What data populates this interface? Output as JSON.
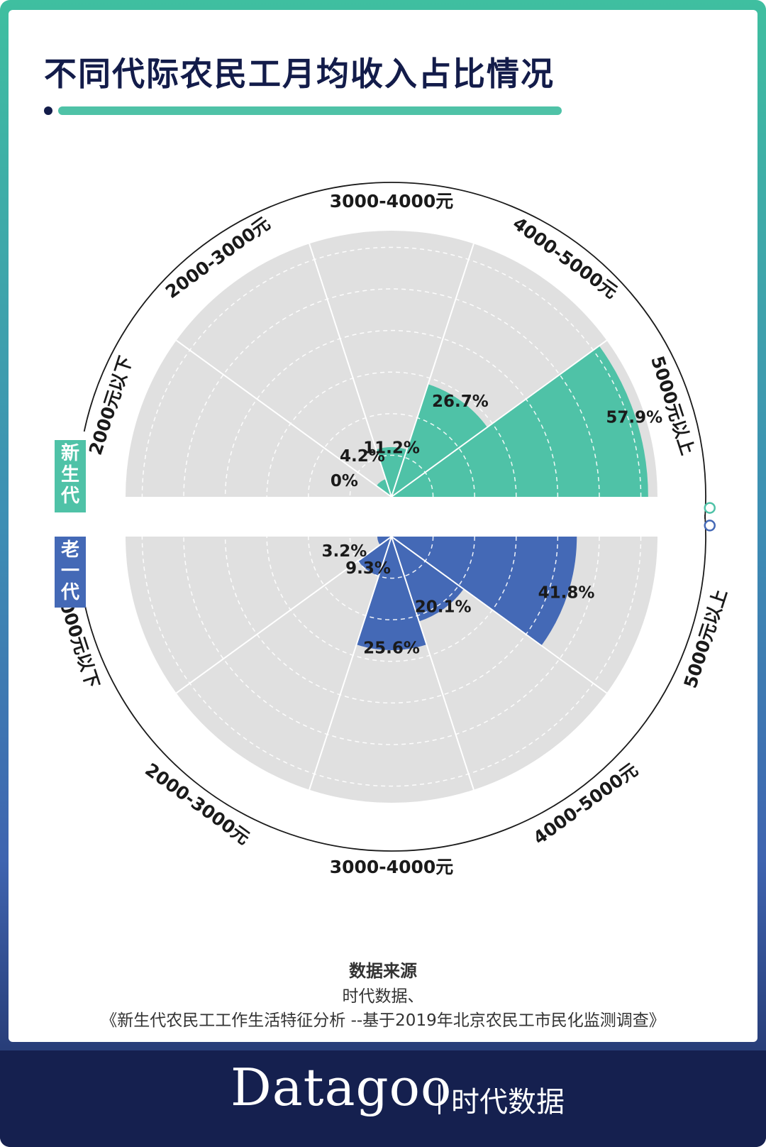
{
  "title": "不同代际农民工月均收入占比情况",
  "series_tags": {
    "new": "新生代",
    "old": "老一代"
  },
  "source": {
    "heading": "数据来源",
    "line1": "时代数据、",
    "line2": "《新生代农民工工作生活特征分析 --基于2019年北京农民工市民化监测调查》"
  },
  "footer": {
    "brand": "Datagoo",
    "brand_cn": "时代数据"
  },
  "colors": {
    "new": "#4fc2a7",
    "old": "#4469b6",
    "background_sector": "#e0e0e0",
    "ring": "#1a1a1a",
    "text": "#1a1a1a"
  },
  "chart_data": [
    {
      "type": "polar-bar",
      "series": "新生代",
      "categories": [
        "2000元以下",
        "2000-3000元",
        "3000-4000元",
        "4000-5000元",
        "5000元以上"
      ],
      "values": [
        0,
        4.2,
        11.2,
        26.7,
        57.9
      ],
      "labels": [
        "0%",
        "4.2%",
        "11.2%",
        "26.7%",
        "57.9%"
      ],
      "rmax": 60,
      "orientation": "upper-half"
    },
    {
      "type": "polar-bar",
      "series": "老一代",
      "categories": [
        "2000元以下",
        "2000-3000元",
        "3000-4000元",
        "4000-5000元",
        "5000元以上"
      ],
      "values": [
        3.2,
        9.3,
        25.6,
        20.1,
        41.8
      ],
      "labels": [
        "3.2%",
        "9.3%",
        "25.6%",
        "20.1%",
        "41.8%"
      ],
      "rmax": 60,
      "orientation": "lower-half"
    }
  ]
}
